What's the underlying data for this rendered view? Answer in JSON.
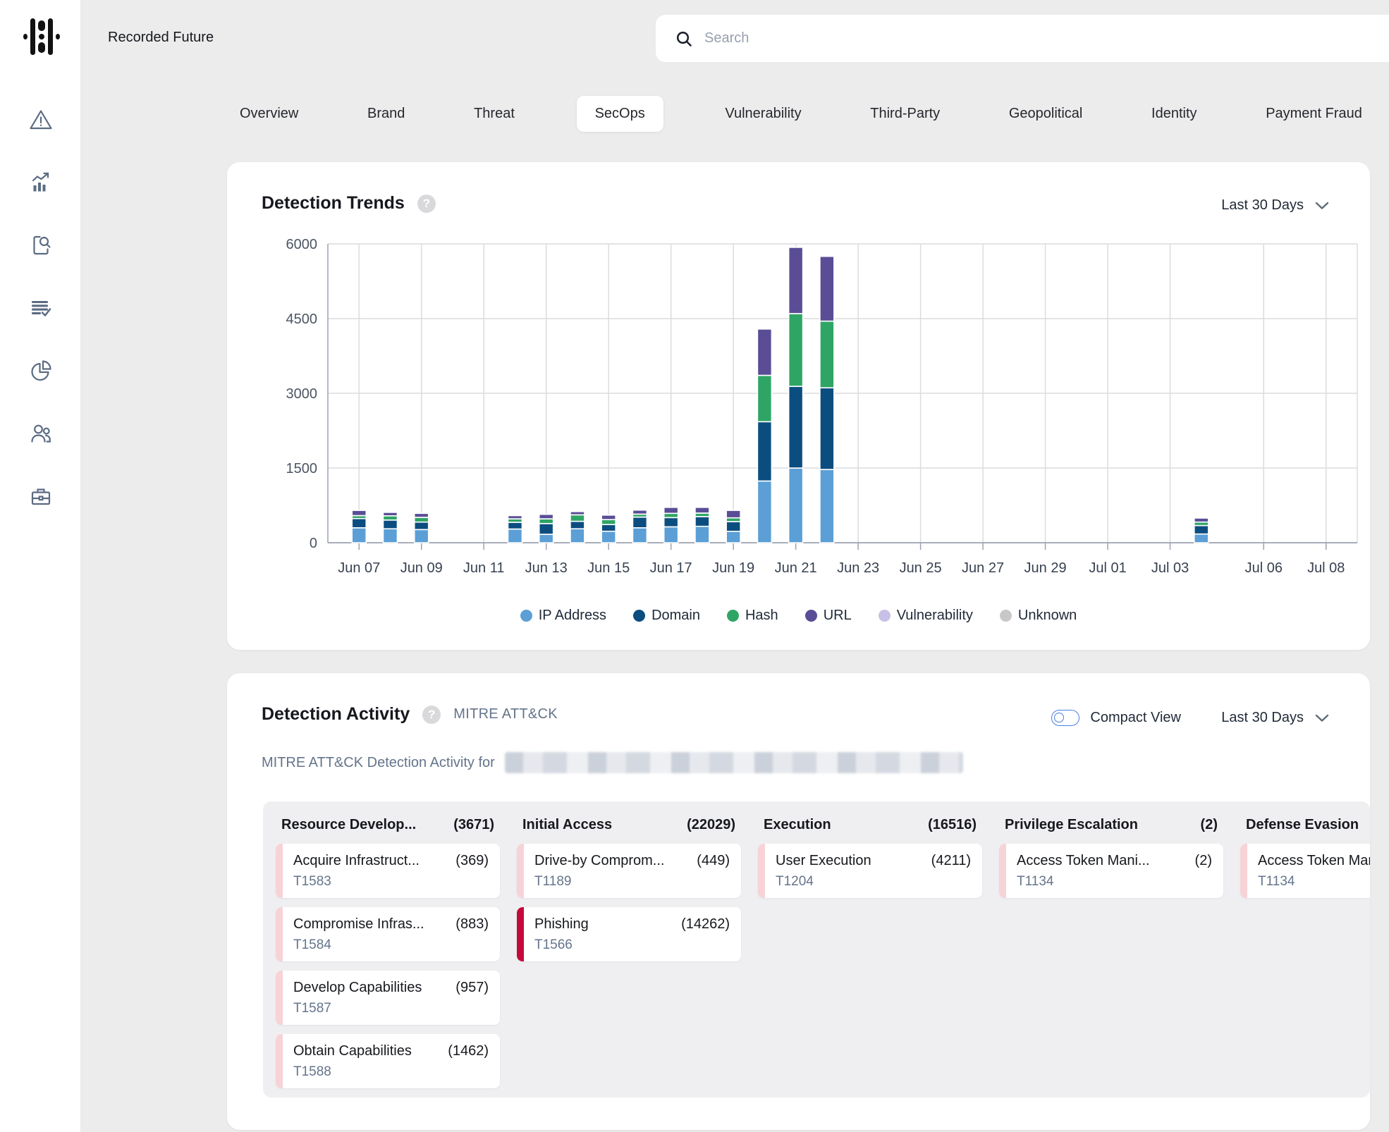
{
  "app": {
    "brand": "Recorded Future"
  },
  "search": {
    "placeholder": "Search"
  },
  "sidebar": {
    "icons": [
      "alert-triangle",
      "trend-chart",
      "search-document",
      "list-check",
      "pie-chart",
      "people",
      "briefcase"
    ]
  },
  "tabs": {
    "items": [
      "Overview",
      "Brand",
      "Threat",
      "SecOps",
      "Vulnerability",
      "Third-Party",
      "Geopolitical",
      "Identity",
      "Payment Fraud"
    ],
    "active": "SecOps"
  },
  "trends": {
    "title": "Detection Trends",
    "range_label": "Last 30 Days"
  },
  "chart_data": {
    "type": "bar",
    "stacked": true,
    "title": "Detection Trends",
    "xlabel": "",
    "ylabel": "",
    "ylim": [
      0,
      6000
    ],
    "yticks": [
      0,
      1500,
      3000,
      4500,
      6000
    ],
    "xticks": [
      "Jun 07",
      "Jun 09",
      "Jun 11",
      "Jun 13",
      "Jun 15",
      "Jun 17",
      "Jun 19",
      "Jun 21",
      "Jun 23",
      "Jun 25",
      "Jun 27",
      "Jun 29",
      "Jul 01",
      "Jul 03",
      "Jul 06",
      "Jul 08"
    ],
    "grid": true,
    "legend_position": "bottom",
    "series": [
      {
        "name": "IP Address",
        "color": "#5B9FD6"
      },
      {
        "name": "Domain",
        "color": "#0C4D80"
      },
      {
        "name": "Hash",
        "color": "#2FA565"
      },
      {
        "name": "URL",
        "color": "#5A4D96"
      },
      {
        "name": "Vulnerability",
        "color": "#C9C0E8"
      },
      {
        "name": "Unknown",
        "color": "#C8C8C8"
      }
    ],
    "bars": [
      {
        "date": "Jun 07",
        "values": {
          "IP Address": 300,
          "Domain": 185,
          "Hash": 60,
          "URL": 105
        }
      },
      {
        "date": "Jun 08",
        "values": {
          "IP Address": 280,
          "Domain": 175,
          "Hash": 85,
          "URL": 70
        }
      },
      {
        "date": "Jun 09",
        "values": {
          "IP Address": 265,
          "Domain": 150,
          "Hash": 95,
          "URL": 80
        }
      },
      {
        "date": "Jun 12",
        "values": {
          "IP Address": 275,
          "Domain": 135,
          "Hash": 70,
          "URL": 65
        }
      },
      {
        "date": "Jun 13",
        "values": {
          "IP Address": 170,
          "Domain": 215,
          "Hash": 95,
          "URL": 90
        }
      },
      {
        "date": "Jun 14",
        "values": {
          "IP Address": 280,
          "Domain": 150,
          "Hash": 130,
          "URL": 65
        }
      },
      {
        "date": "Jun 15",
        "values": {
          "IP Address": 230,
          "Domain": 135,
          "Hash": 100,
          "URL": 90
        }
      },
      {
        "date": "Jun 16",
        "values": {
          "IP Address": 300,
          "Domain": 215,
          "Hash": 60,
          "URL": 80
        }
      },
      {
        "date": "Jun 17",
        "values": {
          "IP Address": 320,
          "Domain": 185,
          "Hash": 85,
          "URL": 120
        }
      },
      {
        "date": "Jun 18",
        "values": {
          "IP Address": 330,
          "Domain": 195,
          "Hash": 70,
          "URL": 115
        }
      },
      {
        "date": "Jun 19",
        "values": {
          "IP Address": 230,
          "Domain": 195,
          "Hash": 75,
          "URL": 150
        }
      },
      {
        "date": "Jun 20",
        "values": {
          "IP Address": 1240,
          "Domain": 1190,
          "Hash": 930,
          "URL": 930
        }
      },
      {
        "date": "Jun 21",
        "values": {
          "IP Address": 1500,
          "Domain": 1640,
          "Hash": 1460,
          "URL": 1330
        }
      },
      {
        "date": "Jun 22",
        "values": {
          "IP Address": 1470,
          "Domain": 1640,
          "Hash": 1340,
          "URL": 1300
        }
      },
      {
        "date": "Jul 04",
        "values": {
          "IP Address": 175,
          "Domain": 170,
          "Hash": 70,
          "URL": 80
        }
      }
    ]
  },
  "activity": {
    "title": "Detection Activity",
    "framework_label": "MITRE ATT&CK",
    "compact_view_label": "Compact View",
    "compact_view_on": false,
    "range_label": "Last 30 Days",
    "subtitle_prefix": "MITRE ATT&CK Detection Activity for",
    "subtitle_redacted": true,
    "accent_colors": {
      "low": "#F7D3D8",
      "high": "#C6093B"
    },
    "columns": [
      {
        "name": "Resource Develop...",
        "count": "(3671)",
        "techniques": [
          {
            "title": "Acquire Infrastruct...",
            "count": "(369)",
            "code": "T1583",
            "accent": "low"
          },
          {
            "title": "Compromise Infras...",
            "count": "(883)",
            "code": "T1584",
            "accent": "low"
          },
          {
            "title": "Develop Capabilities",
            "count": "(957)",
            "code": "T1587",
            "accent": "low"
          },
          {
            "title": "Obtain Capabilities",
            "count": "(1462)",
            "code": "T1588",
            "accent": "low"
          }
        ]
      },
      {
        "name": "Initial Access",
        "count": "(22029)",
        "techniques": [
          {
            "title": "Drive-by Comprom...",
            "count": "(449)",
            "code": "T1189",
            "accent": "low"
          },
          {
            "title": "Phishing",
            "count": "(14262)",
            "code": "T1566",
            "accent": "high"
          }
        ]
      },
      {
        "name": "Execution",
        "count": "(16516)",
        "techniques": [
          {
            "title": "User Execution",
            "count": "(4211)",
            "code": "T1204",
            "accent": "low"
          }
        ]
      },
      {
        "name": "Privilege Escalation",
        "count": "(2)",
        "techniques": [
          {
            "title": "Access Token Mani...",
            "count": "(2)",
            "code": "T1134",
            "accent": "low"
          }
        ]
      },
      {
        "name": "Defense Evasion",
        "count": "",
        "techniques": [
          {
            "title": "Access Token Mani...",
            "count": "",
            "code": "T1134",
            "accent": "low"
          }
        ]
      }
    ]
  }
}
